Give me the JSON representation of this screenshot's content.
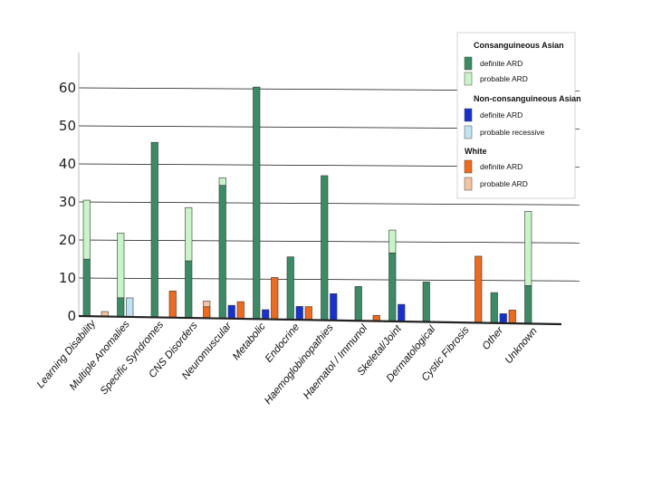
{
  "chart_data": {
    "type": "bar",
    "title": "",
    "xlabel": "",
    "ylabel": "",
    "ylim": [
      0,
      70
    ],
    "yticks": [
      0,
      10,
      20,
      30,
      40,
      50,
      60
    ],
    "stacked": true,
    "categories": [
      "Learning Disability",
      "Multiple Anomalies",
      "Specific Syndromes",
      "CNS Disorders",
      "Neuromuscular",
      "Metabolic",
      "Endocrine",
      "Haemoglobinopathies",
      "Haematol / Immunol",
      "Skeletal/Joint",
      "Dermatological",
      "Cystic Fibrosis",
      "Other",
      "Unknown"
    ],
    "groups": [
      {
        "name": "Consanguineous Asian",
        "series": [
          {
            "name": "definite ARD",
            "color": "#3a8c64",
            "values": [
              15,
              5,
              46,
              15,
              35,
              61,
              16.5,
              38,
              9,
              18,
              10.5,
              0,
              8,
              10
            ]
          },
          {
            "name": "probable ARD",
            "color": "#c8f5c8",
            "values": [
              15.5,
              17,
              0,
              14,
              2,
              0,
              0,
              0,
              0,
              6,
              0,
              0,
              0,
              19.5
            ]
          }
        ]
      },
      {
        "name": "Non-consanguineous Asian",
        "series": [
          {
            "name": "definite ARD",
            "color": "#1431d8",
            "values": [
              0,
              0,
              0,
              0,
              3.5,
              2.5,
              3.5,
              7,
              0,
              4.5,
              0,
              0,
              2.5,
              0
            ]
          },
          {
            "name": "probable recessive",
            "color": "#bfe3f3",
            "values": [
              0,
              5,
              0,
              0,
              0,
              0,
              0,
              0,
              0,
              0,
              0,
              0,
              0,
              0
            ]
          }
        ]
      },
      {
        "name": "White",
        "series": [
          {
            "name": "definite ARD",
            "color": "#f2691a",
            "values": [
              0,
              0,
              7,
              3,
              4.5,
              11,
              3.5,
              0,
              1.5,
              0,
              0,
              17.5,
              3.5,
              0
            ]
          },
          {
            "name": "probable ARD",
            "color": "#f5c49e",
            "values": [
              1.3,
              0,
              0,
              1.5,
              0,
              0,
              0,
              0,
              0,
              0,
              0,
              0,
              0,
              0
            ]
          }
        ]
      }
    ],
    "legend_position": "top-right"
  }
}
